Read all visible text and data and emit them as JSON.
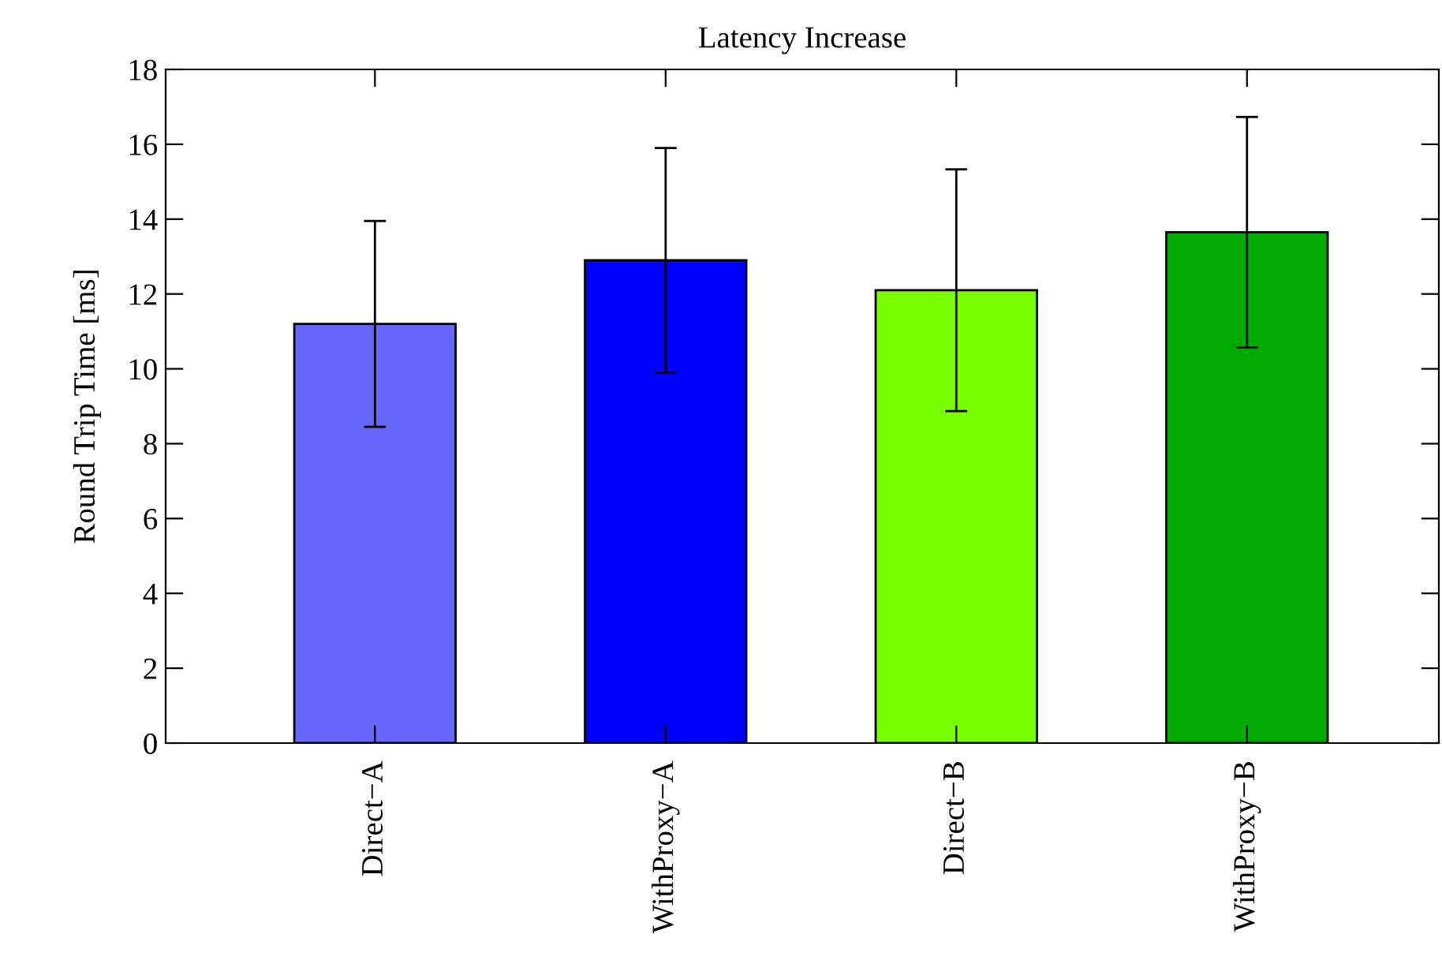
{
  "chart_data": {
    "type": "bar",
    "title": "Latency Increase",
    "ylabel": "Round Trip Time [ms]",
    "categories": [
      "Direct−A",
      "WithProxy−A",
      "Direct−B",
      "WithProxy−B"
    ],
    "values": [
      11.2,
      12.9,
      12.1,
      13.65
    ],
    "errors": [
      2.75,
      3.0,
      3.23,
      3.08
    ],
    "colors": [
      "#6666ff",
      "#0000ff",
      "#77ff00",
      "#00aa00"
    ],
    "ylim": [
      0,
      18
    ],
    "yticks": [
      0,
      2,
      4,
      6,
      8,
      10,
      12,
      14,
      16,
      18
    ],
    "grid": false,
    "legend": false
  }
}
